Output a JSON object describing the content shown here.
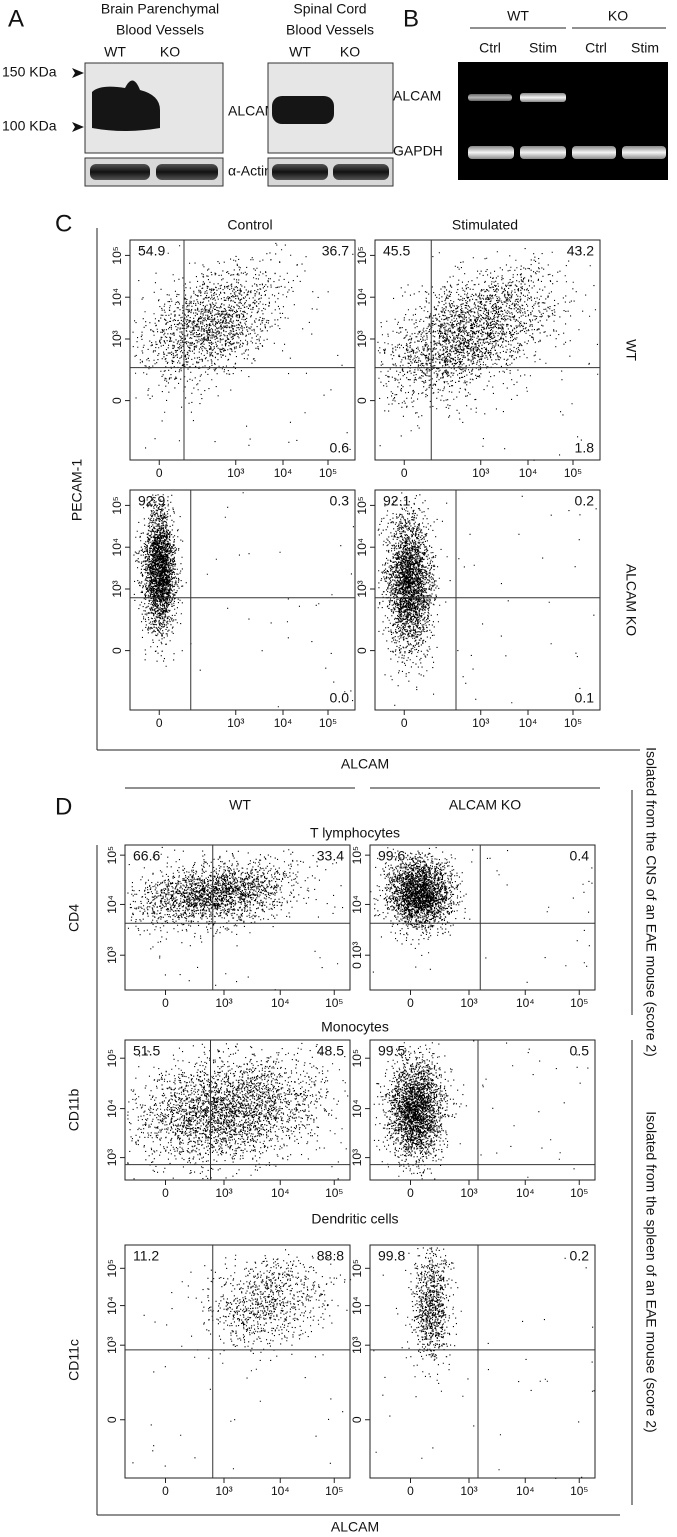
{
  "panel_a": {
    "label": "A",
    "brain": {
      "title": [
        "Brain Parenchymal",
        "Blood Vessels"
      ],
      "lanes": [
        "WT",
        "KO"
      ]
    },
    "spinal": {
      "title": [
        "Spinal Cord",
        "Blood Vessels"
      ],
      "lanes": [
        "WT",
        "KO"
      ]
    },
    "size_markers": [
      "150 KDa",
      "100 KDa"
    ],
    "bands": [
      "ALCAM",
      "α-Actin"
    ]
  },
  "panel_b": {
    "label": "B",
    "groups": [
      "WT",
      "KO"
    ],
    "lanes": [
      "Ctrl",
      "Stim",
      "Ctrl",
      "Stim"
    ],
    "bands": [
      "ALCAM",
      "GAPDH"
    ]
  },
  "panel_c": {
    "label": "C",
    "columns": [
      "Control",
      "Stimulated"
    ],
    "rows": [
      "WT",
      "ALCAM KO"
    ],
    "y_axis": "PECAM-1",
    "x_axis": "ALCAM",
    "plots": [
      {
        "quadrants": [
          "54.9",
          "36.7",
          "0.6"
        ],
        "xticks": [
          "0",
          "10³",
          "10⁴",
          "10⁵"
        ],
        "yticks": [
          "10⁵",
          "10⁴",
          "10³",
          "0"
        ]
      },
      {
        "quadrants": [
          "45.5",
          "43.2",
          "1.8"
        ],
        "xticks": [
          "0",
          "10³",
          "10⁴",
          "10⁵"
        ],
        "yticks": [
          "10⁵",
          "10⁴",
          "10³",
          "0"
        ]
      },
      {
        "quadrants": [
          "92.9",
          "0.3",
          "0.0"
        ],
        "xticks": [
          "0",
          "10³",
          "10⁴",
          "10⁵"
        ],
        "yticks": [
          "10⁵",
          "10⁴",
          "10³",
          "0"
        ]
      },
      {
        "quadrants": [
          "92.1",
          "0.2",
          "0.1"
        ],
        "xticks": [
          "0",
          "10³",
          "10⁴",
          "10⁵"
        ],
        "yticks": [
          "10⁵",
          "10⁴",
          "10³",
          "0"
        ]
      }
    ]
  },
  "panel_d": {
    "label": "D",
    "columns": [
      "WT",
      "ALCAM KO"
    ],
    "x_axis": "ALCAM",
    "side_labels": [
      "Isolated from the CNS of an EAE mouse (score 2)",
      "Isolated from the spleen of an EAE mouse (score 2)"
    ],
    "rows": [
      {
        "title": "T lymphocytes",
        "y_axis": "CD4",
        "plots": [
          {
            "quadrants": [
              "66.6",
              "33.4"
            ],
            "xticks": [
              "0",
              "10³",
              "10⁴",
              "10⁵"
            ],
            "yticks": [
              "10⁵",
              "10⁴",
              "10³"
            ]
          },
          {
            "quadrants": [
              "99.6",
              "0.4"
            ],
            "xticks": [
              "0",
              "10³",
              "10⁴",
              "10⁵"
            ],
            "yticks": [
              "10⁵",
              "10⁴",
              "0 10³"
            ]
          }
        ]
      },
      {
        "title": "Monocytes",
        "y_axis": "CD11b",
        "plots": [
          {
            "quadrants": [
              "51.5",
              "48.5"
            ],
            "xticks": [
              "0",
              "10³",
              "10⁴",
              "10⁵"
            ],
            "yticks": [
              "10⁵",
              "10⁴",
              "10³"
            ]
          },
          {
            "quadrants": [
              "99.5",
              "0.5"
            ],
            "xticks": [
              "0",
              "10³",
              "10⁴",
              "10⁵"
            ],
            "yticks": [
              "10⁵",
              "10⁴",
              "10³"
            ]
          }
        ]
      },
      {
        "title": "Dendritic cells",
        "y_axis": "CD11c",
        "plots": [
          {
            "quadrants": [
              "11.2",
              "88.8"
            ],
            "xticks": [
              "0",
              "10³",
              "10⁴",
              "10⁵"
            ],
            "yticks": [
              "10⁵",
              "10⁴",
              "10³",
              "0"
            ]
          },
          {
            "quadrants": [
              "99.8",
              "0.2"
            ],
            "xticks": [
              "0",
              "10³",
              "10⁴",
              "10⁵"
            ],
            "yticks": [
              "10⁵",
              "10⁴",
              "10³",
              "0"
            ]
          }
        ]
      }
    ]
  }
}
